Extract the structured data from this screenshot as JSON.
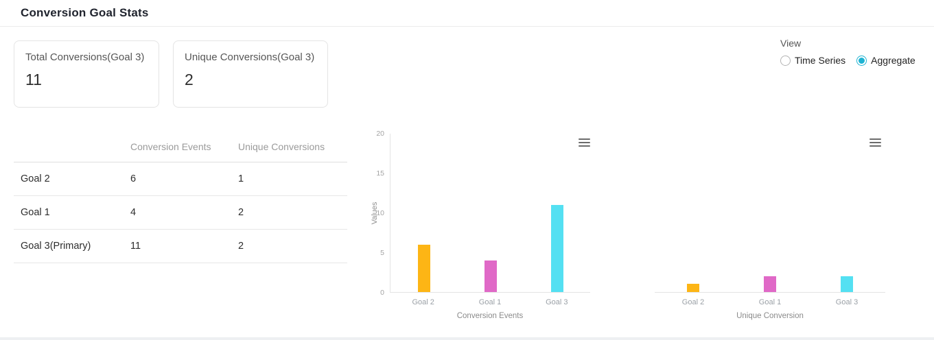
{
  "header": {
    "title": "Conversion Goal Stats"
  },
  "cards": [
    {
      "label": "Total Conversions(Goal 3)",
      "value": "11"
    },
    {
      "label": "Unique Conversions(Goal 3)",
      "value": "2"
    }
  ],
  "view_toggle": {
    "label": "View",
    "options": [
      {
        "label": "Time Series",
        "selected": false
      },
      {
        "label": "Aggregate",
        "selected": true
      }
    ],
    "accent_color": "#1FB3D2"
  },
  "table": {
    "columns": [
      "",
      "Conversion Events",
      "Unique Conversions"
    ],
    "rows": [
      {
        "goal": "Goal 2",
        "conversion_events": "6",
        "unique_conversions": "1"
      },
      {
        "goal": "Goal 1",
        "conversion_events": "4",
        "unique_conversions": "2"
      },
      {
        "goal": "Goal 3(Primary)",
        "conversion_events": "11",
        "unique_conversions": "2"
      }
    ]
  },
  "chart_data": [
    {
      "type": "bar",
      "categories": [
        "Goal 2",
        "Goal 1",
        "Goal 3"
      ],
      "values": [
        6,
        4,
        11
      ],
      "colors": [
        "#FDB515",
        "#E069C7",
        "#54E0F2"
      ],
      "title": "",
      "xlabel": "Conversion Events",
      "ylabel": "Values",
      "ylim": [
        0,
        20
      ],
      "yticks": [
        0,
        5,
        10,
        15,
        20
      ],
      "legend": "none",
      "grid": false,
      "menu_icon": "hamburger-menu-icon"
    },
    {
      "type": "bar",
      "categories": [
        "Goal 2",
        "Goal 1",
        "Goal 3"
      ],
      "values": [
        1,
        2,
        2
      ],
      "colors": [
        "#FDB515",
        "#E069C7",
        "#54E0F2"
      ],
      "title": "",
      "xlabel": "Unique Conversion",
      "ylabel": "",
      "ylim": [
        0,
        20
      ],
      "yticks": [],
      "legend": "none",
      "grid": false,
      "menu_icon": "hamburger-menu-icon"
    }
  ]
}
